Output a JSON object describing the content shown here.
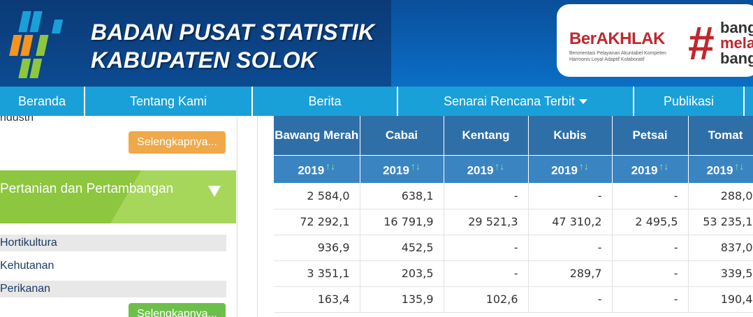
{
  "header": {
    "title_line1": "BADAN PUSAT STATISTIK",
    "title_line2": "KABUPATEN SOLOK",
    "berakhlak": "BerAKHLAK",
    "berakhlak_sub": "Berorientasi Pelayanan Akuntabel Kompeten Harmonis Loyal Adaptif Kolaboratif",
    "bangga_hash": "#",
    "bangga_w1": "bang",
    "bangga_w2": "mela",
    "bangga_w3": "bang"
  },
  "nav": {
    "items": [
      {
        "label": "Beranda"
      },
      {
        "label": "Tentang Kami"
      },
      {
        "label": "Berita"
      },
      {
        "label": "Senarai Rencana Terbit"
      },
      {
        "label": "Publikasi"
      }
    ]
  },
  "sidebar": {
    "top_text": "ndustri",
    "more_btn_1": "Selengkapnya...",
    "category": "Pertanian dan Pertambangan",
    "items": [
      {
        "label": "Hortikultura"
      },
      {
        "label": "Kehutanan"
      },
      {
        "label": "Perikanan"
      }
    ],
    "more_btn_2": "Selengkapnya...",
    "colors": {
      "orange_btn": "#f0a848",
      "green_btn": "#6cc04a",
      "category_bg": "#8dc63f"
    }
  },
  "table": {
    "columns": [
      {
        "name": "Bawang Merah",
        "year": "2019"
      },
      {
        "name": "Cabai",
        "year": "2019"
      },
      {
        "name": "Kentang",
        "year": "2019"
      },
      {
        "name": "Kubis",
        "year": "2019"
      },
      {
        "name": "Petsai",
        "year": "2019"
      },
      {
        "name": "Tomat",
        "year": "2019"
      }
    ],
    "rows": [
      [
        "2 584,0",
        "638,1",
        "-",
        "-",
        "-",
        "288,0"
      ],
      [
        "72 292,1",
        "16 791,9",
        "29 521,3",
        "47 310,2",
        "2 495,5",
        "53 235,1"
      ],
      [
        "936,9",
        "452,5",
        "-",
        "-",
        "-",
        "837,0"
      ],
      [
        "3 351,1",
        "203,5",
        "-",
        "289,7",
        "-",
        "339,5"
      ],
      [
        "163,4",
        "135,9",
        "102,6",
        "-",
        "-",
        "190,4"
      ]
    ],
    "sort_icon": "sort-arrows-icon"
  }
}
